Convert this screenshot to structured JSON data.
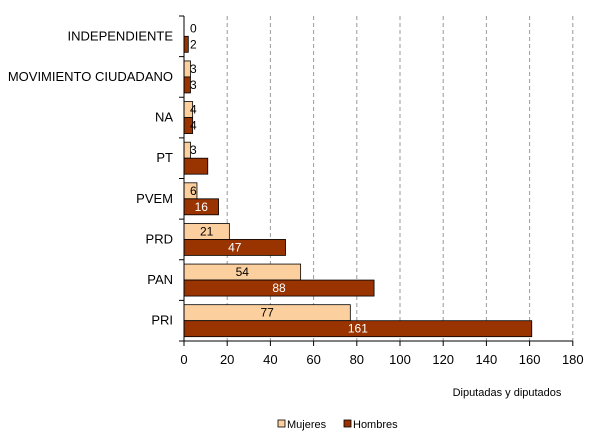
{
  "chart_data": {
    "type": "bar",
    "orientation": "horizontal",
    "categories": [
      "INDEPENDIENTE",
      "MOVIMIENTO CIUDADANO",
      "NA",
      "PT",
      "PVEM",
      "PRD",
      "PAN",
      "PRI"
    ],
    "series": [
      {
        "name": "Mujeres",
        "color": "#FCCF9E",
        "values": [
          0,
          3,
          4,
          3,
          6,
          21,
          54,
          77
        ]
      },
      {
        "name": "Hombres",
        "color": "#993300",
        "values": [
          2,
          3,
          4,
          11,
          16,
          47,
          88,
          161
        ]
      }
    ],
    "xlabel": "Diputadas y diputados",
    "xlim": [
      0,
      180
    ],
    "xticks": [
      0,
      20,
      40,
      60,
      80,
      100,
      120,
      140,
      160,
      180
    ],
    "grid": "vertical-dashed",
    "legend_position": "bottom"
  }
}
